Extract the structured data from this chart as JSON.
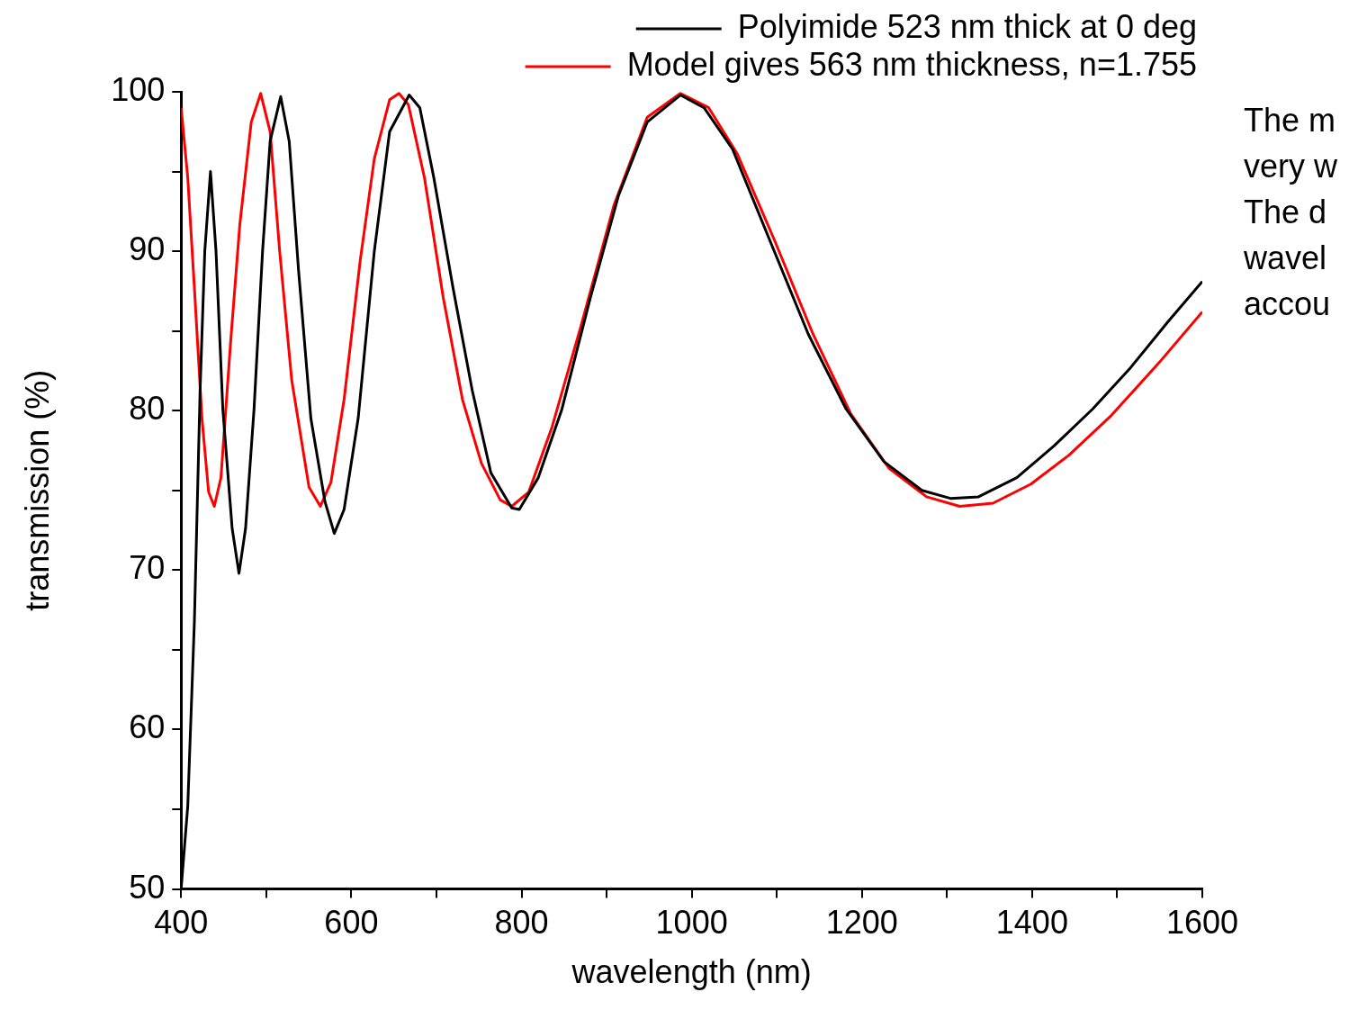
{
  "chart_data": {
    "type": "line",
    "xlabel": "wavelength (nm)",
    "ylabel": "transmission (%)",
    "xlim": [
      400,
      1600
    ],
    "ylim": [
      50,
      100
    ],
    "xticks": [
      400,
      {
        "value": 500,
        "label": null
      },
      600,
      {
        "value": 700,
        "label": null
      },
      800,
      {
        "value": 900,
        "label": null
      },
      1000,
      {
        "value": 1100,
        "label": null
      },
      1200,
      {
        "value": 1300,
        "label": null
      },
      1400,
      {
        "value": 1500,
        "label": null
      },
      1600
    ],
    "yticks": [
      50,
      {
        "value": 55,
        "label": null
      },
      60,
      {
        "value": 65,
        "label": null
      },
      70,
      {
        "value": 75,
        "label": null
      },
      80,
      {
        "value": 85,
        "label": null
      },
      90,
      {
        "value": 95,
        "label": null
      },
      100
    ],
    "grid": false,
    "legend": "top right",
    "marker": "none",
    "line_style": "solid",
    "annotations": [
      "The m\nvery w\nThe d\nwavel\naccou"
    ],
    "series": [
      {
        "name": "Polyimide 523 nm thick at 0 deg",
        "color": "#000000",
        "x": [
          400,
          407.8,
          415.6,
          422.3,
          427.8,
          434.5,
          441,
          449,
          460,
          468,
          475.7,
          485.7,
          495.7,
          504.6,
          517,
          527,
          538,
          552.5,
          569,
          580,
          591.5,
          608,
          627,
          645,
          668,
          680.5,
          697,
          719.5,
          742,
          764,
          788.5,
          797.4,
          819.7,
          847.5,
          881,
          914,
          947.7,
          986.7,
          1014.5,
          1048,
          1092.4,
          1137,
          1181.5,
          1226,
          1270.5,
          1304,
          1337,
          1382,
          1426,
          1471,
          1515.7,
          1560,
          1600
        ],
        "values": [
          50,
          55.2,
          66.8,
          81.3,
          90,
          95,
          90,
          80.1,
          72.6,
          69.8,
          72.6,
          80.1,
          90,
          96.9,
          99.7,
          96.9,
          88.8,
          79.5,
          74.3,
          72.3,
          73.8,
          79.5,
          90,
          97.5,
          99.8,
          99,
          94.6,
          87.7,
          81.3,
          76.1,
          73.9,
          73.8,
          75.8,
          80.1,
          87.1,
          93.5,
          98.1,
          99.8,
          99,
          96.4,
          90.6,
          84.8,
          80.1,
          76.8,
          75,
          74.5,
          74.6,
          75.8,
          77.8,
          80.1,
          82.7,
          85.6,
          88.1
        ]
      },
      {
        "name": "Model gives 563 nm thickness, n=1.755",
        "color": "#ff0000",
        "x": [
          400,
          407.8,
          415.6,
          424.5,
          432.3,
          439,
          446.8,
          458,
          469,
          482.4,
          493.5,
          504.6,
          515.8,
          530,
          550.3,
          563.6,
          576,
          591.5,
          610.4,
          627,
          645,
          656,
          667,
          686,
          708,
          730.6,
          752.9,
          775,
          788.5,
          808.5,
          836,
          869.8,
          908.7,
          947.7,
          986.7,
          1020,
          1053.6,
          1098,
          1142.6,
          1187,
          1231.6,
          1276,
          1315,
          1354,
          1398.6,
          1443,
          1493,
          1549,
          1600
        ],
        "values": [
          99,
          94.6,
          87.7,
          79.5,
          74.9,
          74,
          75.8,
          84.2,
          91.7,
          98.1,
          99.9,
          97.5,
          90,
          81.9,
          75.2,
          74,
          75.5,
          80.7,
          89.4,
          95.8,
          99.5,
          99.9,
          99.2,
          94.6,
          87.1,
          80.7,
          76.7,
          74.4,
          74,
          74.9,
          79,
          85.3,
          92.9,
          98.4,
          99.9,
          99,
          96.1,
          90.6,
          84.8,
          79.8,
          76.4,
          74.6,
          74,
          74.2,
          75.4,
          77.2,
          79.7,
          83,
          86.2
        ]
      }
    ]
  }
}
